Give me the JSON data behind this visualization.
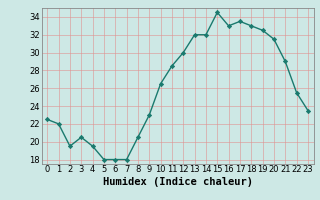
{
  "x": [
    0,
    1,
    2,
    3,
    4,
    5,
    6,
    7,
    8,
    9,
    10,
    11,
    12,
    13,
    14,
    15,
    16,
    17,
    18,
    19,
    20,
    21,
    22,
    23
  ],
  "y": [
    22.5,
    22,
    19.5,
    20.5,
    19.5,
    18,
    18,
    18,
    20.5,
    23,
    26.5,
    28.5,
    30,
    32,
    32,
    34.5,
    33,
    33.5,
    33,
    32.5,
    31.5,
    29,
    25.5,
    23.5
  ],
  "line_color": "#1a7a6e",
  "marker_color": "#1a7a6e",
  "bg_color": "#cde8e5",
  "grid_color": "#b8d8d4",
  "xlabel": "Humidex (Indice chaleur)",
  "xlim": [
    -0.5,
    23.5
  ],
  "ylim": [
    17.5,
    35
  ],
  "yticks": [
    18,
    20,
    22,
    24,
    26,
    28,
    30,
    32,
    34
  ],
  "xtick_labels": [
    "0",
    "1",
    "2",
    "3",
    "4",
    "5",
    "6",
    "7",
    "8",
    "9",
    "10",
    "11",
    "12",
    "13",
    "14",
    "15",
    "16",
    "17",
    "18",
    "19",
    "20",
    "21",
    "22",
    "23"
  ],
  "xlabel_fontsize": 7.5,
  "tick_fontsize": 6.0
}
